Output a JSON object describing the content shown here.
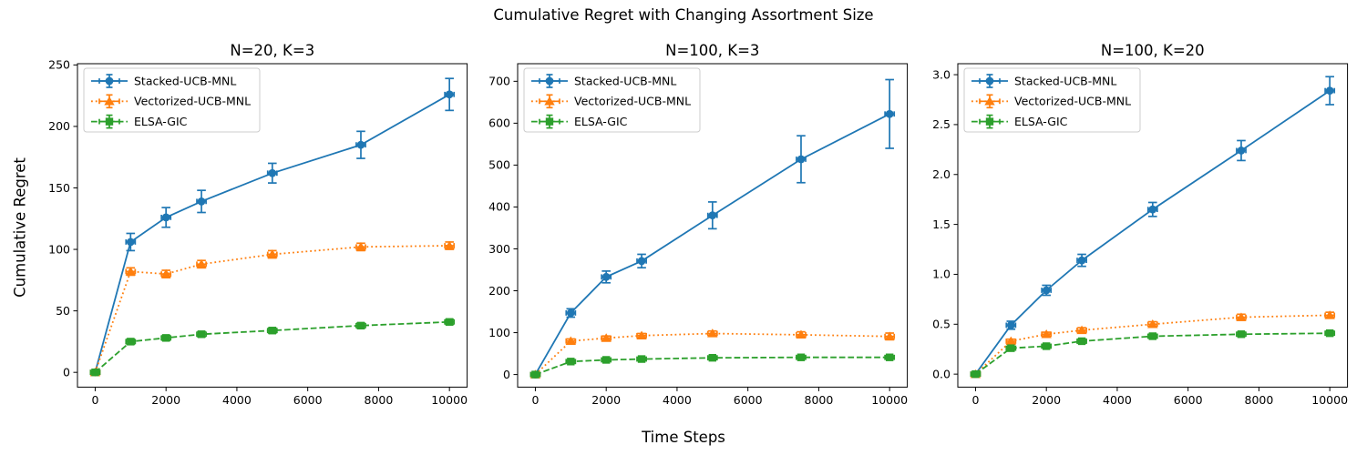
{
  "figure": {
    "suptitle": "Cumulative Regret with Changing Assortment Size",
    "xlabel": "Time Steps",
    "ylabel": "Cumulative Regret",
    "background": "#ffffff",
    "accent_colors": {
      "blue": "#1f77b4",
      "orange": "#ff7f0e",
      "green": "#2ca02c"
    }
  },
  "chart_data": [
    {
      "type": "line",
      "title": "N=20, K=3",
      "x": [
        0,
        1000,
        2000,
        3000,
        5000,
        7500,
        10000
      ],
      "xlim": [
        -500,
        10500
      ],
      "ylim": [
        -12,
        251
      ],
      "grid": false,
      "legend_position": "upper left",
      "xticks": {
        "values": [
          0,
          2000,
          4000,
          6000,
          8000,
          10000
        ],
        "labels": [
          "0",
          "2000",
          "4000",
          "6000",
          "8000",
          "10000"
        ]
      },
      "yticks": {
        "values": [
          0,
          50,
          100,
          150,
          200,
          250
        ],
        "labels": [
          "0",
          "50",
          "100",
          "150",
          "200",
          "250"
        ]
      },
      "series": [
        {
          "name": "Stacked-UCB-MNL",
          "color": "#1f77b4",
          "linestyle": "solid",
          "marker": "circle",
          "values": [
            0,
            106,
            126,
            139,
            162,
            185,
            226
          ],
          "yerr": [
            1,
            7,
            8,
            9,
            8,
            11,
            13
          ],
          "xerr": 130
        },
        {
          "name": "Vectorized-UCB-MNL",
          "color": "#ff7f0e",
          "linestyle": "dotted",
          "marker": "triangle",
          "values": [
            0,
            82,
            80,
            88,
            96,
            102,
            103
          ],
          "yerr": [
            1,
            3,
            3,
            3,
            3,
            3,
            3
          ],
          "xerr": 130
        },
        {
          "name": "ELSA-GIC",
          "color": "#2ca02c",
          "linestyle": "dashed",
          "marker": "square",
          "values": [
            0,
            25,
            28,
            31,
            34,
            38,
            41
          ],
          "yerr": [
            1,
            2,
            2,
            2,
            2,
            2,
            2
          ],
          "xerr": 130
        }
      ]
    },
    {
      "type": "line",
      "title": "N=100, K=3",
      "x": [
        0,
        1000,
        2000,
        3000,
        5000,
        7500,
        10000
      ],
      "xlim": [
        -500,
        10500
      ],
      "ylim": [
        -30,
        742
      ],
      "grid": false,
      "legend_position": "upper left",
      "xticks": {
        "values": [
          0,
          2000,
          4000,
          6000,
          8000,
          10000
        ],
        "labels": [
          "0",
          "2000",
          "4000",
          "6000",
          "8000",
          "10000"
        ]
      },
      "yticks": {
        "values": [
          0,
          100,
          200,
          300,
          400,
          500,
          600,
          700
        ],
        "labels": [
          "0",
          "100",
          "200",
          "300",
          "400",
          "500",
          "600",
          "700"
        ]
      },
      "series": [
        {
          "name": "Stacked-UCB-MNL",
          "color": "#1f77b4",
          "linestyle": "solid",
          "marker": "circle",
          "values": [
            0,
            147,
            233,
            271,
            380,
            514,
            622
          ],
          "yerr": [
            2,
            10,
            14,
            16,
            32,
            56,
            82
          ],
          "xerr": 130
        },
        {
          "name": "Vectorized-UCB-MNL",
          "color": "#ff7f0e",
          "linestyle": "dotted",
          "marker": "triangle",
          "values": [
            0,
            80,
            87,
            93,
            98,
            95,
            91
          ],
          "yerr": [
            2,
            5,
            5,
            5,
            6,
            7,
            8
          ],
          "xerr": 130
        },
        {
          "name": "ELSA-GIC",
          "color": "#2ca02c",
          "linestyle": "dashed",
          "marker": "square",
          "values": [
            0,
            31,
            35,
            37,
            40,
            41,
            41
          ],
          "yerr": [
            2,
            3,
            3,
            3,
            3,
            3,
            3
          ],
          "xerr": 130
        }
      ]
    },
    {
      "type": "line",
      "title": "N=100, K=20",
      "x": [
        0,
        1000,
        2000,
        3000,
        5000,
        7500,
        10000
      ],
      "xlim": [
        -500,
        10500
      ],
      "ylim": [
        -0.13,
        3.11
      ],
      "grid": false,
      "legend_position": "upper left",
      "xticks": {
        "values": [
          0,
          2000,
          4000,
          6000,
          8000,
          10000
        ],
        "labels": [
          "0",
          "2000",
          "4000",
          "6000",
          "8000",
          "10000"
        ]
      },
      "yticks": {
        "values": [
          0,
          0.5,
          1.0,
          1.5,
          2.0,
          2.5,
          3.0
        ],
        "labels": [
          "0.0",
          "0.5",
          "1.0",
          "1.5",
          "2.0",
          "2.5",
          "3.0"
        ]
      },
      "series": [
        {
          "name": "Stacked-UCB-MNL",
          "color": "#1f77b4",
          "linestyle": "solid",
          "marker": "circle",
          "values": [
            0,
            0.49,
            0.84,
            1.14,
            1.65,
            2.24,
            2.84
          ],
          "yerr": [
            0.01,
            0.04,
            0.05,
            0.06,
            0.07,
            0.1,
            0.14
          ],
          "xerr": 130
        },
        {
          "name": "Vectorized-UCB-MNL",
          "color": "#ff7f0e",
          "linestyle": "dotted",
          "marker": "triangle",
          "values": [
            0,
            0.33,
            0.4,
            0.44,
            0.5,
            0.57,
            0.59
          ],
          "yerr": [
            0.01,
            0.02,
            0.02,
            0.025,
            0.025,
            0.03,
            0.03
          ],
          "xerr": 130
        },
        {
          "name": "ELSA-GIC",
          "color": "#2ca02c",
          "linestyle": "dashed",
          "marker": "square",
          "values": [
            0,
            0.26,
            0.28,
            0.33,
            0.38,
            0.4,
            0.41
          ],
          "yerr": [
            0.01,
            0.015,
            0.015,
            0.02,
            0.02,
            0.02,
            0.02
          ],
          "xerr": 130
        }
      ]
    }
  ]
}
